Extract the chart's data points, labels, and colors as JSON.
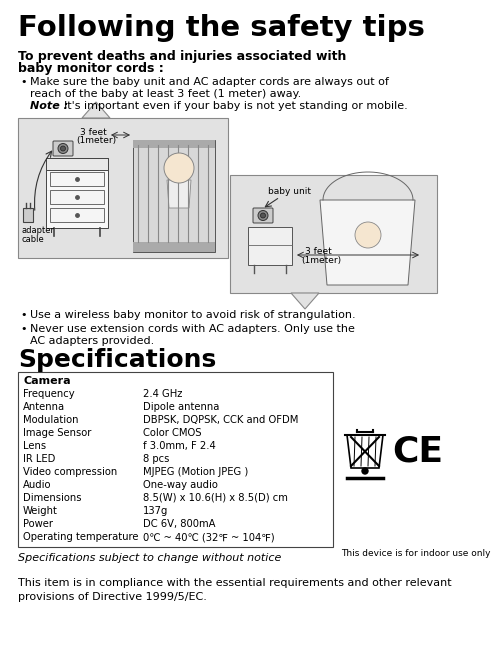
{
  "title": "Following the safety tips",
  "subtitle1": "To prevent deaths and injuries associated with",
  "subtitle2": "baby monitor cords :",
  "bullet1_line1": "Make sure the baby unit and AC adapter cords are always out of",
  "bullet1_line2": "reach of the baby at least 3 feet (1 meter) away.",
  "note_bold": "Note : ",
  "note_text": "It's important even if your baby is not yet standing or mobile.",
  "bullet2": "Use a wireless baby monitor to avoid risk of strangulation.",
  "bullet3_line1": "Never use extension cords with AC adapters. Only use the",
  "bullet3_line2": "AC adapters provided.",
  "spec_title": "Specifications",
  "spec_header": "Camera",
  "spec_rows": [
    [
      "Frequency",
      "2.4 GHz"
    ],
    [
      "Antenna",
      "Dipole antenna"
    ],
    [
      "Modulation",
      "DBPSK, DQPSK, CCK and OFDM"
    ],
    [
      "Image Sensor",
      "Color CMOS"
    ],
    [
      "Lens",
      "f 3.0mm, F 2.4"
    ],
    [
      "IR LED",
      "8 pcs"
    ],
    [
      "Video compression",
      "MJPEG (Motion JPEG )"
    ],
    [
      "Audio",
      "One-way audio"
    ],
    [
      "Dimensions",
      "8.5(W) x 10.6(H) x 8.5(D) cm"
    ],
    [
      "Weight",
      "137g"
    ],
    [
      "Power",
      "DC 6V, 800mA"
    ],
    [
      "Operating temperature",
      "0℃ ~ 40℃ (32℉ ~ 104℉)"
    ]
  ],
  "spec_note": "Specifications subject to change without notice",
  "indoor_note": "This device is for indoor use only",
  "compliance": "This item is in compliance with the essential requirements and other relevant\nprovisions of Directive 1999/5/EC.",
  "bg_color": "#ffffff",
  "text_color": "#000000",
  "gray_box": "#e2e2e2",
  "spec_box_edge": "#444444"
}
